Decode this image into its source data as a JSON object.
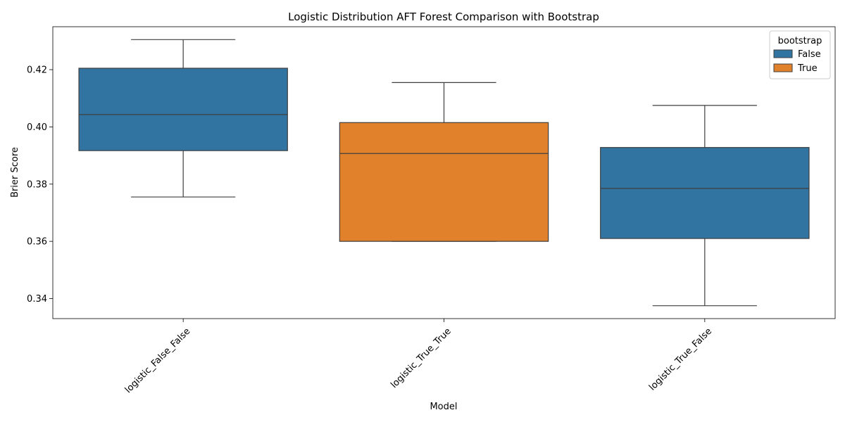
{
  "chart_data": {
    "type": "box",
    "title": "Logistic Distribution AFT Forest Comparison with Bootstrap",
    "xlabel": "Model",
    "ylabel": "Brier Score",
    "ylim": [
      0.333,
      0.435
    ],
    "yticks": [
      0.34,
      0.36,
      0.38,
      0.4,
      0.42
    ],
    "ytick_labels": [
      "0.34",
      "0.36",
      "0.38",
      "0.40",
      "0.42"
    ],
    "grid": false,
    "legend": {
      "title": "bootstrap",
      "placement": "top-right",
      "entries": [
        {
          "label": "False",
          "color": "#3274a1"
        },
        {
          "label": "True",
          "color": "#e1812c"
        }
      ]
    },
    "categories": [
      "logistic_False_False",
      "logistic_True_True",
      "logistic_True_False"
    ],
    "boxes": [
      {
        "category": "logistic_False_False",
        "bootstrap": "False",
        "whisker_low": 0.3755,
        "q1": 0.3917,
        "median": 0.4043,
        "q3": 0.4205,
        "whisker_high": 0.4305
      },
      {
        "category": "logistic_True_True",
        "bootstrap": "True",
        "whisker_low": 0.36,
        "q1": 0.36,
        "median": 0.3907,
        "q3": 0.4015,
        "whisker_high": 0.4155
      },
      {
        "category": "logistic_True_False",
        "bootstrap": "False",
        "whisker_low": 0.3375,
        "q1": 0.361,
        "median": 0.3785,
        "q3": 0.3928,
        "whisker_high": 0.4075
      }
    ]
  }
}
